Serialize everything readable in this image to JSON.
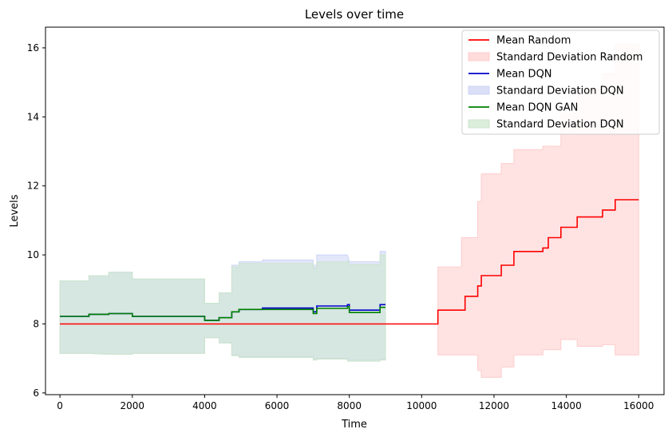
{
  "chart_data": {
    "type": "line",
    "title": "Levels over time",
    "xlabel": "Time",
    "ylabel": "Levels",
    "xlim": [
      -400,
      16700
    ],
    "ylim": [
      5.95,
      16.6
    ],
    "xticks": [
      0,
      2000,
      4000,
      6000,
      8000,
      10000,
      12000,
      14000,
      16000
    ],
    "yticks": [
      6,
      8,
      10,
      12,
      14,
      16
    ],
    "grid": false,
    "legend_position": "top-right",
    "series": [
      {
        "name": "Mean Random",
        "band_name": "Standard Deviation Random",
        "color": "#ff0000",
        "band_color": "#ffcccc",
        "points": [
          [
            0,
            8.0
          ],
          [
            10450,
            8.0
          ],
          [
            10450,
            8.4
          ],
          [
            11200,
            8.4
          ],
          [
            11200,
            8.8
          ],
          [
            11550,
            8.8
          ],
          [
            11550,
            9.1
          ],
          [
            11650,
            9.1
          ],
          [
            11650,
            9.4
          ],
          [
            12200,
            9.4
          ],
          [
            12200,
            9.7
          ],
          [
            12550,
            9.7
          ],
          [
            12550,
            10.1
          ],
          [
            13350,
            10.1
          ],
          [
            13350,
            10.2
          ],
          [
            13500,
            10.2
          ],
          [
            13500,
            10.5
          ],
          [
            13850,
            10.5
          ],
          [
            13850,
            10.8
          ],
          [
            14300,
            10.8
          ],
          [
            14300,
            11.1
          ],
          [
            15000,
            11.1
          ],
          [
            15000,
            11.3
          ],
          [
            15350,
            11.3
          ],
          [
            15350,
            11.6
          ],
          [
            16000,
            11.6
          ]
        ],
        "band": [
          [
            10450,
            7.1,
            9.65
          ],
          [
            11100,
            7.1,
            9.65
          ],
          [
            11100,
            7.1,
            10.5
          ],
          [
            11550,
            7.1,
            10.5
          ],
          [
            11550,
            6.65,
            11.55
          ],
          [
            11650,
            6.65,
            11.55
          ],
          [
            11650,
            6.45,
            12.35
          ],
          [
            12200,
            6.45,
            12.35
          ],
          [
            12200,
            6.75,
            12.65
          ],
          [
            12550,
            6.75,
            12.65
          ],
          [
            12550,
            7.1,
            13.05
          ],
          [
            13350,
            7.1,
            13.05
          ],
          [
            13350,
            7.25,
            13.15
          ],
          [
            13850,
            7.25,
            13.15
          ],
          [
            13850,
            7.55,
            14.1
          ],
          [
            14300,
            7.55,
            14.1
          ],
          [
            14300,
            7.35,
            14.8
          ],
          [
            15000,
            7.35,
            14.8
          ],
          [
            15000,
            7.4,
            15.25
          ],
          [
            15350,
            7.4,
            15.25
          ],
          [
            15350,
            7.1,
            16.1
          ],
          [
            16000,
            7.1,
            16.1
          ]
        ]
      },
      {
        "name": "Mean DQN",
        "band_name": "Standard Deviation DQN",
        "color": "#0000cc",
        "band_color": "#ccd3f5",
        "points": [
          [
            0,
            8.22
          ],
          [
            800,
            8.22
          ],
          [
            800,
            8.28
          ],
          [
            1350,
            8.28
          ],
          [
            1350,
            8.3
          ],
          [
            2000,
            8.3
          ],
          [
            2000,
            8.22
          ],
          [
            4000,
            8.22
          ],
          [
            4000,
            8.1
          ],
          [
            4400,
            8.1
          ],
          [
            4400,
            8.18
          ],
          [
            4750,
            8.18
          ],
          [
            4750,
            8.35
          ],
          [
            4950,
            8.35
          ],
          [
            4950,
            8.42
          ],
          [
            5600,
            8.42
          ],
          [
            5600,
            8.46
          ],
          [
            7000,
            8.46
          ],
          [
            7000,
            8.35
          ],
          [
            7100,
            8.35
          ],
          [
            7100,
            8.52
          ],
          [
            7950,
            8.52
          ],
          [
            7950,
            8.56
          ],
          [
            8000,
            8.56
          ],
          [
            8000,
            8.4
          ],
          [
            8850,
            8.4
          ],
          [
            8850,
            8.56
          ],
          [
            9000,
            8.56
          ]
        ],
        "band": [
          [
            0,
            7.15,
            9.25
          ],
          [
            800,
            7.15,
            9.25
          ],
          [
            800,
            7.15,
            9.4
          ],
          [
            1350,
            7.12,
            9.4
          ],
          [
            1350,
            7.12,
            9.5
          ],
          [
            2000,
            7.12,
            9.5
          ],
          [
            2000,
            7.15,
            9.3
          ],
          [
            4000,
            7.15,
            9.3
          ],
          [
            4000,
            7.6,
            8.6
          ],
          [
            4400,
            7.6,
            8.6
          ],
          [
            4400,
            7.45,
            8.9
          ],
          [
            4750,
            7.45,
            8.9
          ],
          [
            4750,
            7.1,
            9.7
          ],
          [
            4950,
            7.1,
            9.7
          ],
          [
            4950,
            7.05,
            9.8
          ],
          [
            5600,
            7.05,
            9.8
          ],
          [
            5600,
            7.05,
            9.85
          ],
          [
            7000,
            7.05,
            9.85
          ],
          [
            7000,
            6.98,
            9.7
          ],
          [
            7100,
            6.98,
            9.7
          ],
          [
            7100,
            7.0,
            10.0
          ],
          [
            7950,
            7.0,
            10.0
          ],
          [
            7950,
            6.95,
            10.0
          ],
          [
            8000,
            6.95,
            9.8
          ],
          [
            8850,
            6.95,
            9.8
          ],
          [
            8850,
            6.98,
            10.1
          ],
          [
            9000,
            6.98,
            10.1
          ]
        ]
      },
      {
        "name": "Mean DQN GAN",
        "band_name": "Standard Deviation DQN",
        "color": "#008000",
        "band_color": "#cce5cc",
        "points": [
          [
            0,
            8.22
          ],
          [
            800,
            8.22
          ],
          [
            800,
            8.28
          ],
          [
            1350,
            8.28
          ],
          [
            1350,
            8.3
          ],
          [
            2000,
            8.3
          ],
          [
            2000,
            8.22
          ],
          [
            4000,
            8.22
          ],
          [
            4000,
            8.1
          ],
          [
            4400,
            8.1
          ],
          [
            4400,
            8.18
          ],
          [
            4750,
            8.18
          ],
          [
            4750,
            8.35
          ],
          [
            4950,
            8.35
          ],
          [
            4950,
            8.42
          ],
          [
            7000,
            8.42
          ],
          [
            7000,
            8.3
          ],
          [
            7100,
            8.3
          ],
          [
            7100,
            8.45
          ],
          [
            7950,
            8.45
          ],
          [
            7950,
            8.5
          ],
          [
            8000,
            8.5
          ],
          [
            8000,
            8.33
          ],
          [
            8850,
            8.33
          ],
          [
            8850,
            8.48
          ],
          [
            9000,
            8.48
          ]
        ],
        "band": [
          [
            0,
            7.15,
            9.25
          ],
          [
            800,
            7.15,
            9.25
          ],
          [
            800,
            7.15,
            9.4
          ],
          [
            1350,
            7.12,
            9.4
          ],
          [
            1350,
            7.12,
            9.5
          ],
          [
            2000,
            7.12,
            9.5
          ],
          [
            2000,
            7.15,
            9.3
          ],
          [
            4000,
            7.15,
            9.3
          ],
          [
            4000,
            7.6,
            8.6
          ],
          [
            4400,
            7.6,
            8.6
          ],
          [
            4400,
            7.45,
            8.9
          ],
          [
            4750,
            7.45,
            8.9
          ],
          [
            4750,
            7.08,
            9.65
          ],
          [
            4950,
            7.08,
            9.65
          ],
          [
            4950,
            7.03,
            9.75
          ],
          [
            7000,
            7.03,
            9.75
          ],
          [
            7000,
            6.95,
            9.62
          ],
          [
            7100,
            6.95,
            9.62
          ],
          [
            7100,
            6.98,
            9.8
          ],
          [
            7950,
            6.98,
            9.8
          ],
          [
            7950,
            6.92,
            9.85
          ],
          [
            8000,
            6.92,
            9.72
          ],
          [
            8850,
            6.92,
            9.72
          ],
          [
            8850,
            6.95,
            10.0
          ],
          [
            9000,
            6.95,
            10.0
          ]
        ]
      }
    ]
  }
}
